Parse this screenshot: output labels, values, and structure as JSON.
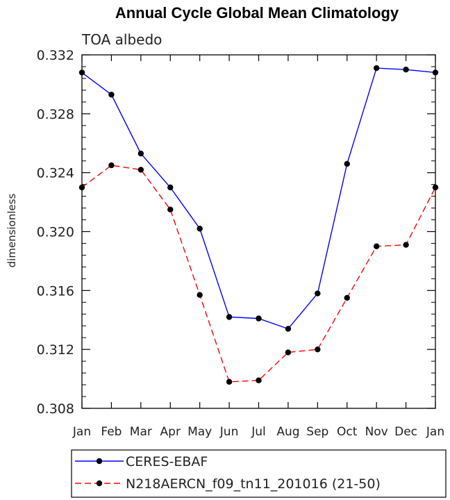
{
  "chart_data": {
    "type": "line",
    "title": "Annual Cycle Global Mean Climatology",
    "subtitle": "TOA albedo",
    "xlabel": "",
    "ylabel": "dimensionless",
    "categories": [
      "Jan",
      "Feb",
      "Mar",
      "Apr",
      "May",
      "Jun",
      "Jul",
      "Aug",
      "Sep",
      "Oct",
      "Nov",
      "Dec",
      "Jan"
    ],
    "ylim": [
      0.308,
      0.332
    ],
    "yticks": [
      "0.308",
      "0.312",
      "0.316",
      "0.320",
      "0.324",
      "0.328",
      "0.332"
    ],
    "series": [
      {
        "name": "CERES-EBAF",
        "color": "#0000ff",
        "dash": "solid",
        "values": [
          0.3308,
          0.3293,
          0.3253,
          0.323,
          0.3202,
          0.3142,
          0.3141,
          0.3134,
          0.3158,
          0.3246,
          0.3311,
          0.331,
          0.3308
        ]
      },
      {
        "name": "N218AERCN_f09_tn11_201016 (21-50)",
        "color": "#ff0000",
        "dash": "dashed",
        "values": [
          0.323,
          0.3245,
          0.3242,
          0.3215,
          0.3157,
          0.3098,
          0.3099,
          0.3118,
          0.312,
          0.3155,
          0.319,
          0.3191,
          0.323
        ]
      }
    ],
    "legend": "bottom",
    "grid": false
  }
}
